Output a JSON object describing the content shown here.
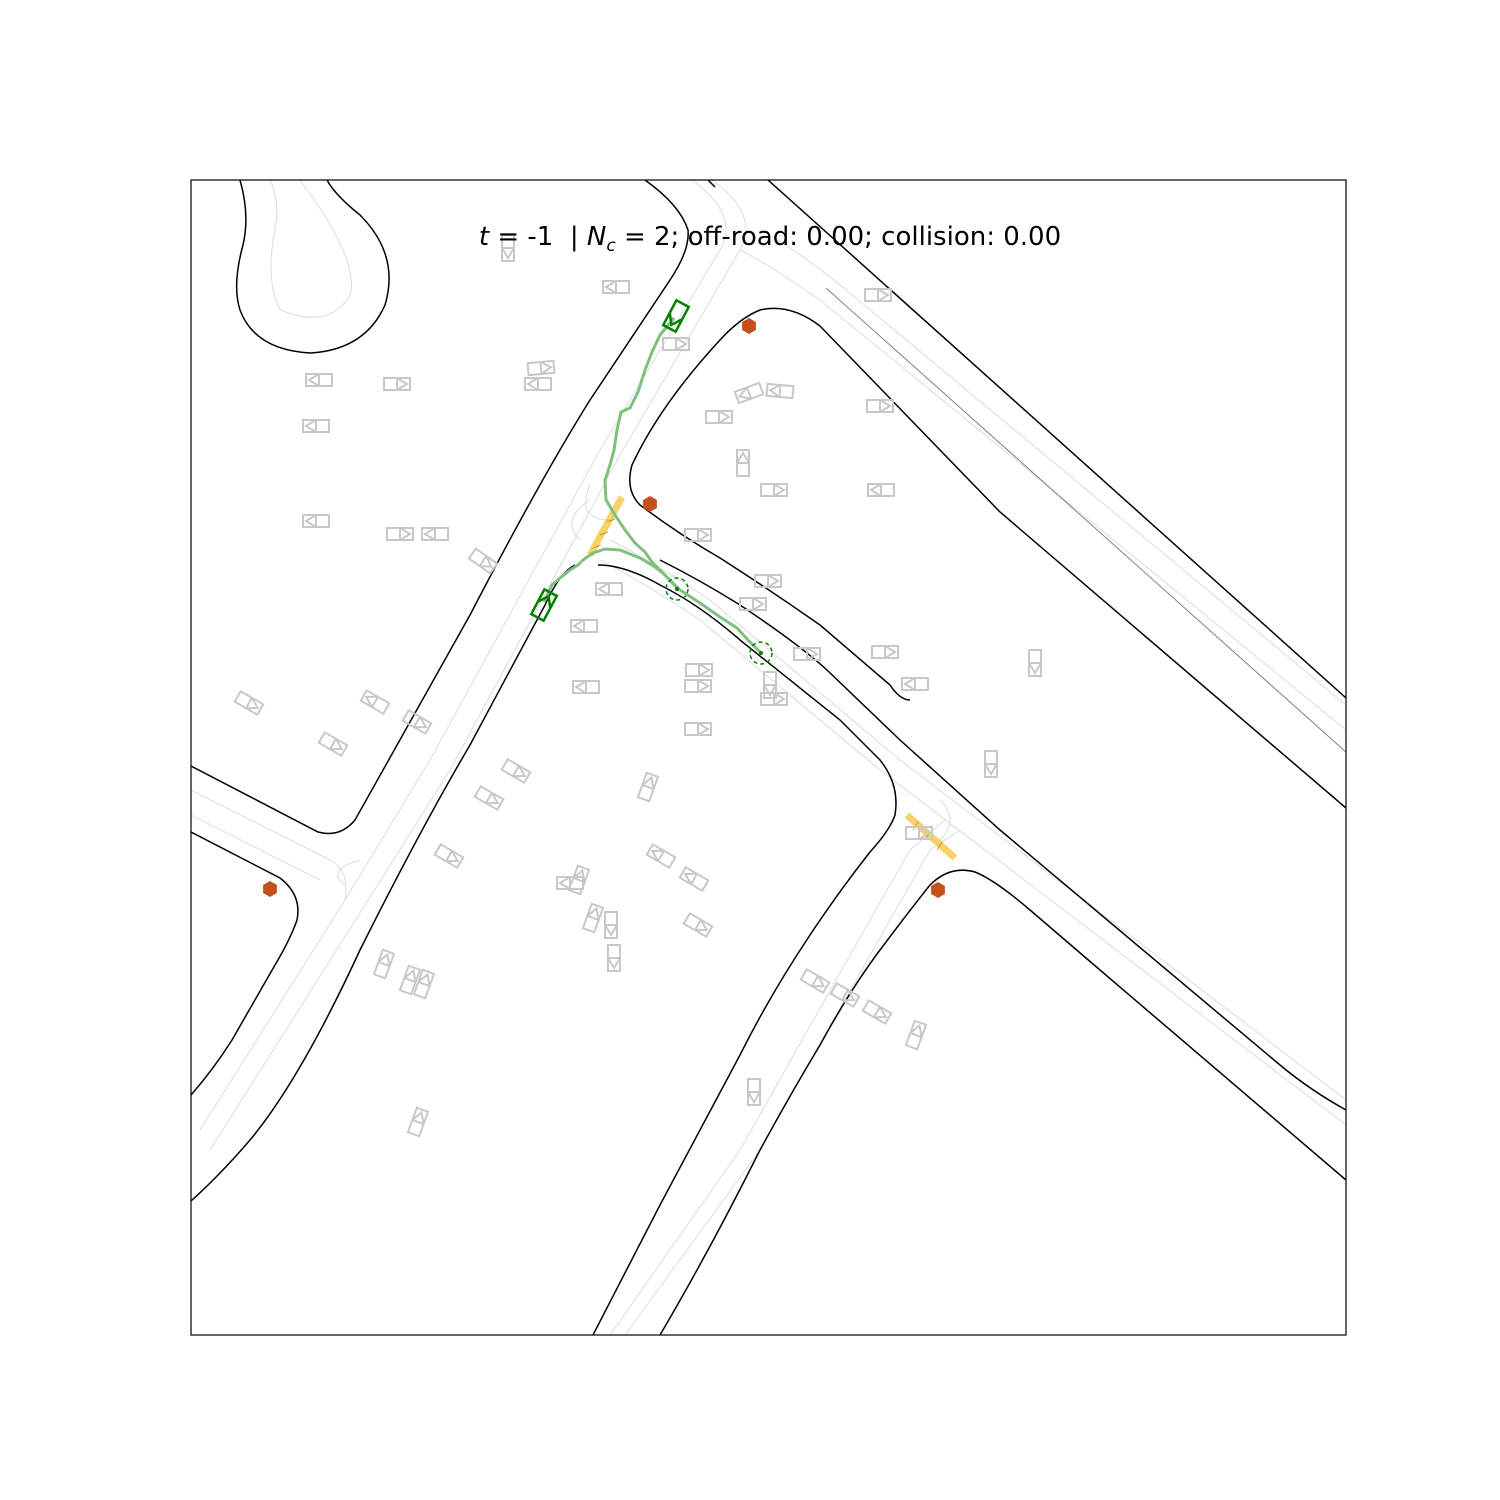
{
  "title": {
    "t_symbol": "t",
    "t_equals": " = -1",
    "separator": "  | ",
    "nc_symbol": "N",
    "nc_subscript": "c",
    "nc_rest": " = 2; off-road: 0.00; collision: 0.00"
  },
  "colors": {
    "road_edge": "#000000",
    "lane_line": "#dcdcdc",
    "parked_vehicle": "#c8c8c8",
    "ego_vehicle": "#008000",
    "trajectory": "#7fbf7f",
    "crosswalk": "#f5c842",
    "stop_sign": "#c4501e",
    "goal_marker": "#008000"
  },
  "icons": {
    "stop_sign": "hexagon-icon",
    "vehicle": "rectangle-arrow-icon",
    "goal": "dashed-circle-icon"
  }
}
